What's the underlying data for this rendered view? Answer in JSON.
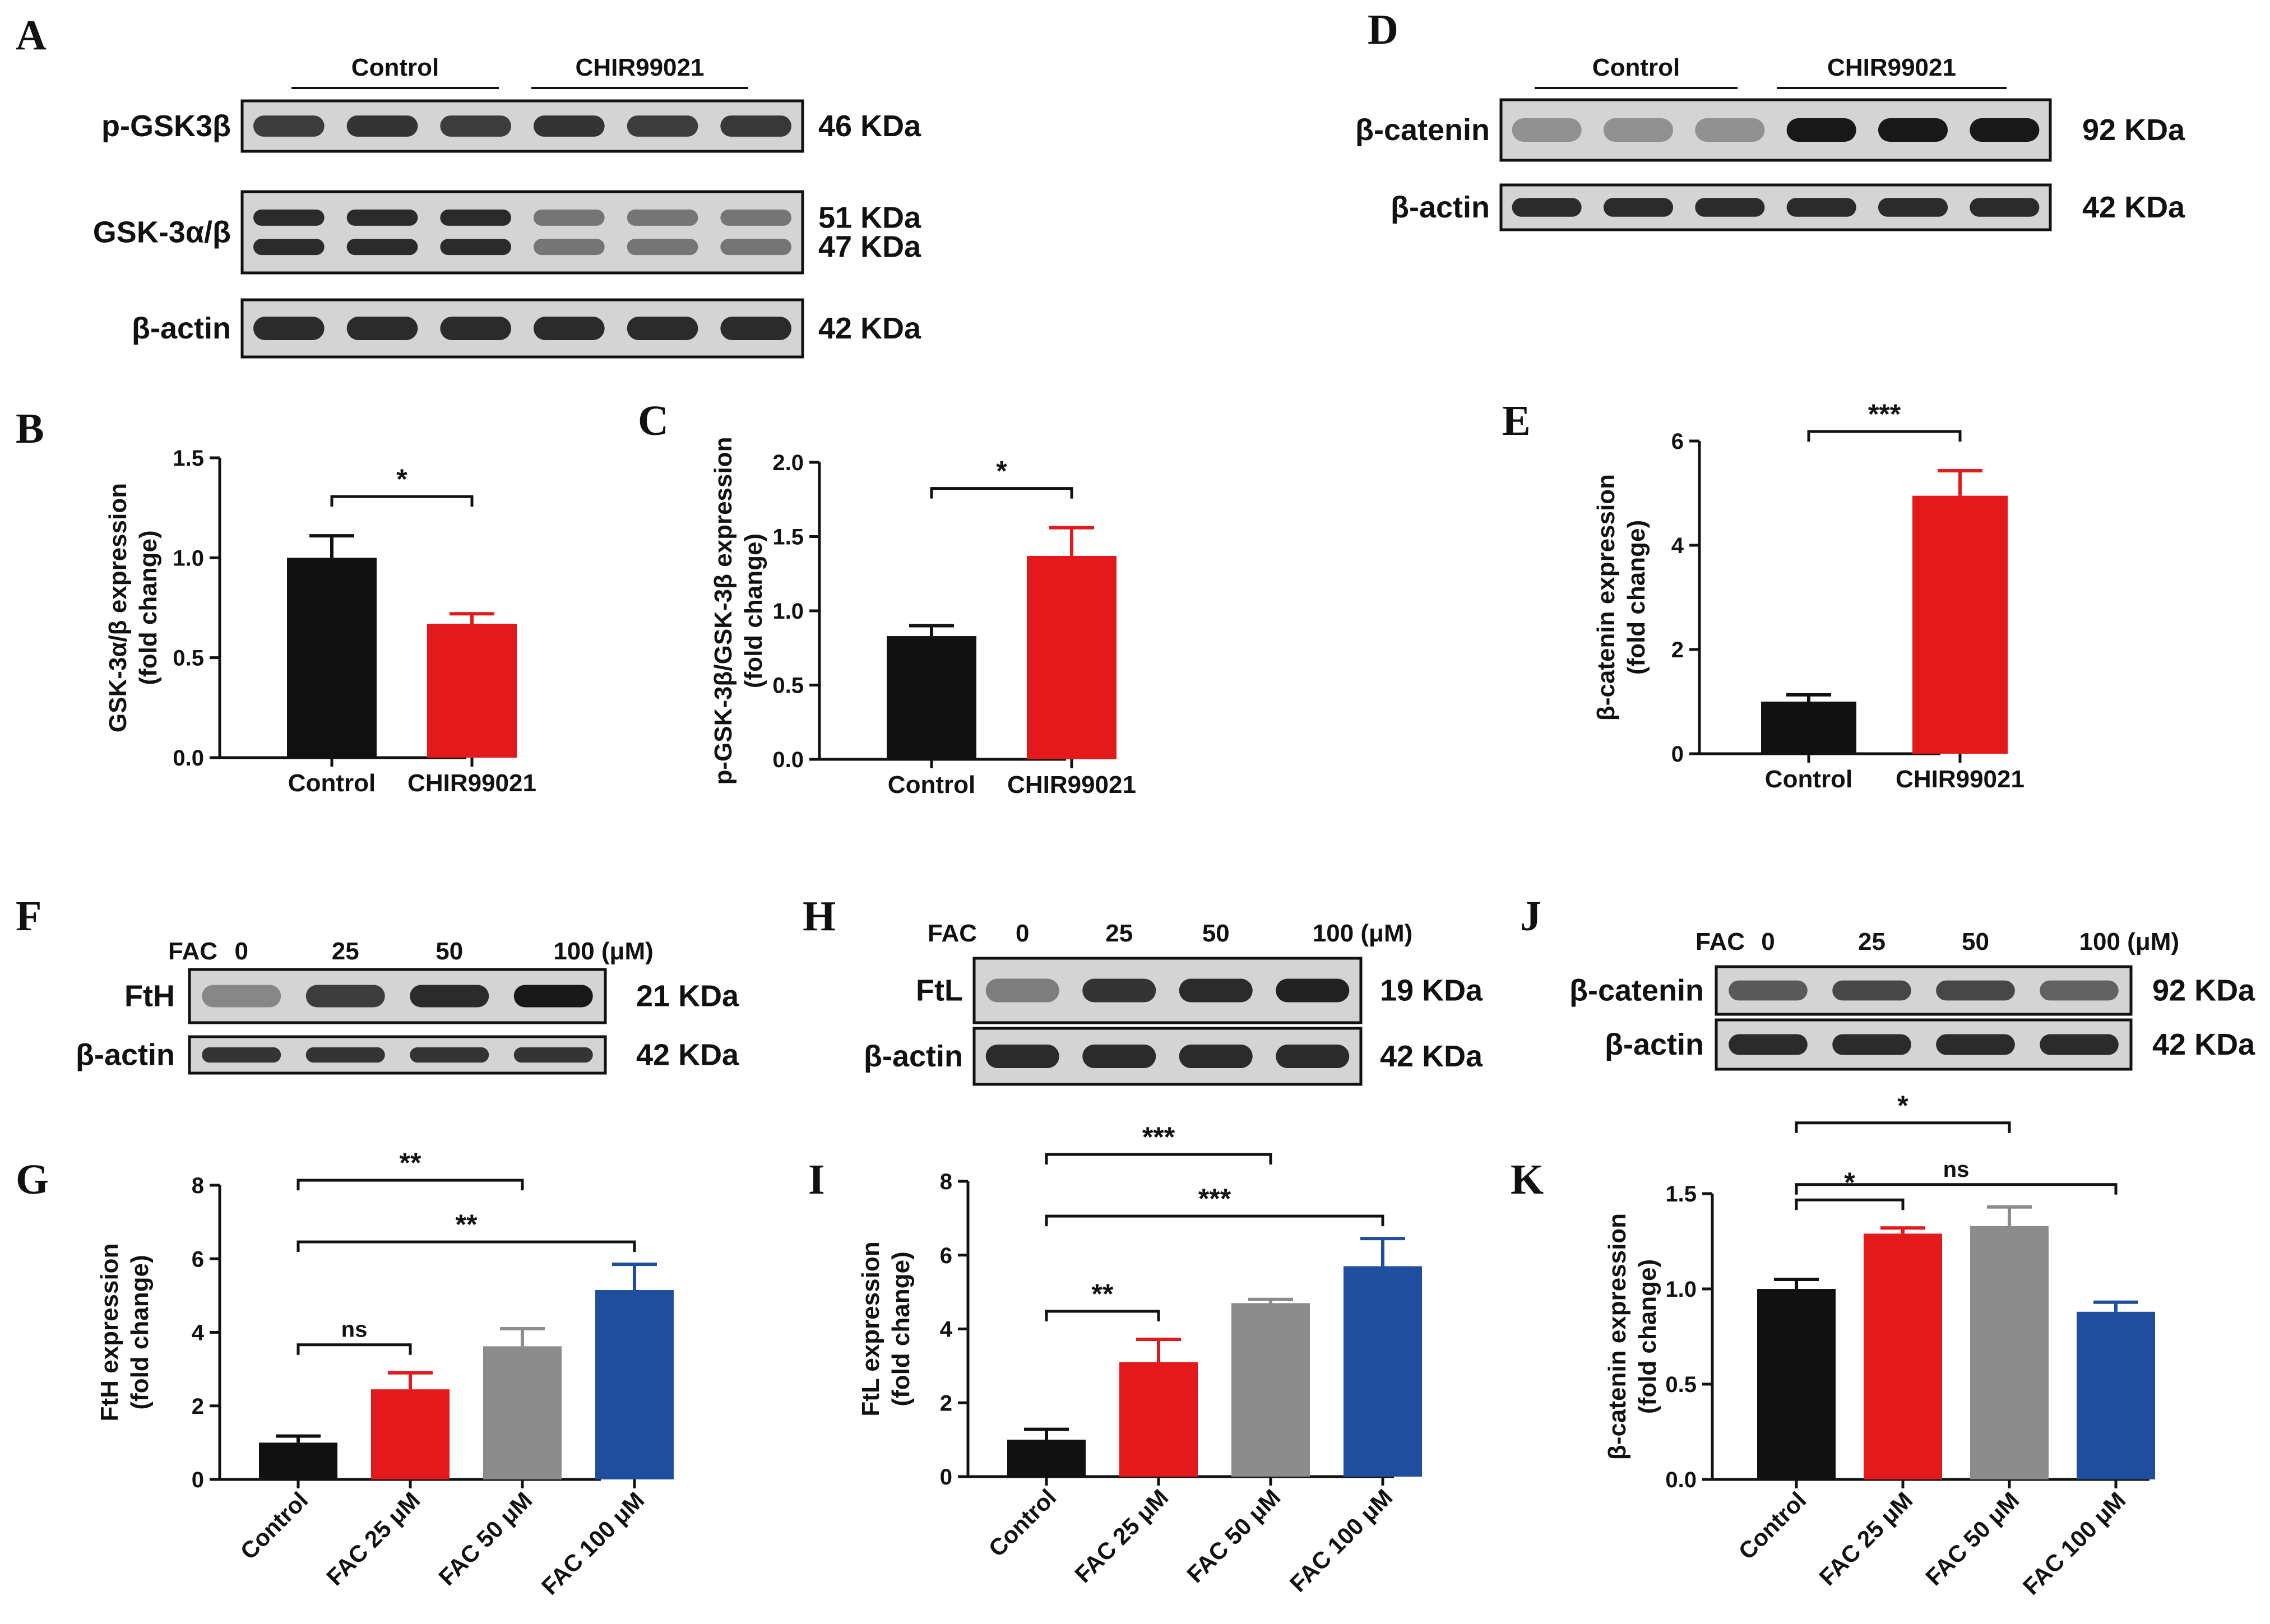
{
  "colors": {
    "black": "#111111",
    "red": "#e3191c",
    "gray": "#8c8c8c",
    "blue": "#1f4e9f"
  },
  "panel_letters": {
    "A": "A",
    "B": "B",
    "C": "C",
    "D": "D",
    "E": "E",
    "F": "F",
    "G": "G",
    "H": "H",
    "I": "I",
    "J": "J",
    "K": "K"
  },
  "blots": {
    "A": {
      "groups": [
        "Control",
        "CHIR99021"
      ],
      "rows": [
        {
          "label": "p-GSK3β",
          "kda": [
            "46 KDa"
          ],
          "intensity": [
            0.75,
            0.8,
            0.75,
            0.8,
            0.75,
            0.78
          ]
        },
        {
          "label": "GSK-3α/β",
          "kda": [
            "51 KDa",
            "47 KDa"
          ],
          "intensity": [
            0.85,
            0.85,
            0.85,
            0.45,
            0.45,
            0.45
          ]
        },
        {
          "label": "β-actin",
          "kda": [
            "42 KDa"
          ],
          "intensity": [
            0.85,
            0.85,
            0.85,
            0.85,
            0.85,
            0.85
          ]
        }
      ]
    },
    "D": {
      "groups": [
        "Control",
        "CHIR99021"
      ],
      "rows": [
        {
          "label": "β-catenin",
          "kda": [
            "92 KDa"
          ],
          "intensity": [
            0.3,
            0.3,
            0.3,
            0.95,
            0.95,
            0.95
          ]
        },
        {
          "label": "β-actin",
          "kda": [
            "42 KDa"
          ],
          "intensity": [
            0.85,
            0.85,
            0.85,
            0.85,
            0.85,
            0.85
          ]
        }
      ]
    },
    "F": {
      "fac_label": "FAC",
      "doses": [
        "0",
        "25",
        "50",
        "100 (μM)"
      ],
      "rows": [
        {
          "label": "FtH",
          "kda": [
            "21 KDa"
          ],
          "intensity": [
            0.35,
            0.75,
            0.85,
            0.95
          ]
        },
        {
          "label": "β-actin",
          "kda": [
            "42 KDa"
          ],
          "intensity": [
            0.8,
            0.8,
            0.8,
            0.8
          ]
        }
      ]
    },
    "H": {
      "fac_label": "FAC",
      "doses": [
        "0",
        "25",
        "50",
        "100 (μM)"
      ],
      "rows": [
        {
          "label": "FtL",
          "kda": [
            "19 KDa"
          ],
          "intensity": [
            0.4,
            0.8,
            0.85,
            0.9
          ]
        },
        {
          "label": "β-actin",
          "kda": [
            "42 KDa"
          ],
          "intensity": [
            0.85,
            0.85,
            0.85,
            0.85
          ]
        }
      ]
    },
    "J": {
      "fac_label": "FAC",
      "doses": [
        "0",
        "25",
        "50",
        "100 (μM)"
      ],
      "rows": [
        {
          "label": "β-catenin",
          "kda": [
            "92 KDa"
          ],
          "intensity": [
            0.6,
            0.7,
            0.7,
            0.55
          ]
        },
        {
          "label": "β-actin",
          "kda": [
            "42 KDa"
          ],
          "intensity": [
            0.85,
            0.85,
            0.85,
            0.85
          ]
        }
      ]
    }
  },
  "chart_data": [
    {
      "panel": "B",
      "type": "bar",
      "categories": [
        "Control",
        "CHIR99021"
      ],
      "values": [
        1.0,
        0.67
      ],
      "errors": [
        0.11,
        0.05
      ],
      "ylabel": "GSK-3α/β expression\n(fold change)",
      "ylim": [
        0,
        1.5
      ],
      "yticks": [
        "0.0",
        "0.5",
        "1.0",
        "1.5"
      ],
      "tick_values": [
        0,
        0.5,
        1,
        1.5
      ],
      "colors": [
        "#111111",
        "#e3191c"
      ],
      "rotate_labels": false,
      "annotations": [
        {
          "from": 0,
          "to": 1,
          "text": "*"
        }
      ]
    },
    {
      "panel": "C",
      "type": "bar",
      "categories": [
        "Control",
        "CHIR99021"
      ],
      "values": [
        0.83,
        1.37
      ],
      "errors": [
        0.07,
        0.19
      ],
      "ylabel": "p-GSK-3β/GSK-3β expression\n(fold change)",
      "ylim": [
        0,
        2.0
      ],
      "yticks": [
        "0.0",
        "0.5",
        "1.0",
        "1.5",
        "2.0"
      ],
      "tick_values": [
        0,
        0.5,
        1,
        1.5,
        2
      ],
      "colors": [
        "#111111",
        "#e3191c"
      ],
      "rotate_labels": false,
      "annotations": [
        {
          "from": 0,
          "to": 1,
          "text": "*"
        }
      ]
    },
    {
      "panel": "E",
      "type": "bar",
      "categories": [
        "Control",
        "CHIR99021"
      ],
      "values": [
        1.0,
        4.95
      ],
      "errors": [
        0.13,
        0.48
      ],
      "ylabel": "β-catenin expression\n(fold change)",
      "ylim": [
        0,
        6
      ],
      "yticks": [
        "0",
        "2",
        "4",
        "6"
      ],
      "tick_values": [
        0,
        2,
        4,
        6
      ],
      "colors": [
        "#111111",
        "#e3191c"
      ],
      "rotate_labels": false,
      "annotations": [
        {
          "from": 0,
          "to": 1,
          "text": "***"
        }
      ]
    },
    {
      "panel": "G",
      "type": "bar",
      "categories": [
        "Control",
        "FAC 25 μM",
        "FAC 50 μM",
        "FAC 100 μM"
      ],
      "values": [
        1.0,
        2.45,
        3.62,
        5.15
      ],
      "errors": [
        0.18,
        0.45,
        0.48,
        0.7
      ],
      "ylabel": "FtH expression\n(fold change)",
      "ylim": [
        0,
        8
      ],
      "yticks": [
        "0",
        "2",
        "4",
        "6",
        "8"
      ],
      "tick_values": [
        0,
        2,
        4,
        6,
        8
      ],
      "colors": [
        "#111111",
        "#e3191c",
        "#8c8c8c",
        "#1f4e9f"
      ],
      "rotate_labels": true,
      "annotations": [
        {
          "from": 0,
          "to": 1,
          "text": "ns"
        },
        {
          "from": 0,
          "to": 2,
          "text": "**"
        },
        {
          "from": 0,
          "to": 3,
          "text": "**"
        }
      ]
    },
    {
      "panel": "I",
      "type": "bar",
      "categories": [
        "Control",
        "FAC 25 μM",
        "FAC 50 μM",
        "FAC 100 μM"
      ],
      "values": [
        1.0,
        3.1,
        4.7,
        5.7
      ],
      "errors": [
        0.28,
        0.62,
        0.1,
        0.75
      ],
      "ylabel": "FtL expression\n(fold change)",
      "ylim": [
        0,
        8
      ],
      "yticks": [
        "0",
        "2",
        "4",
        "6",
        "8"
      ],
      "tick_values": [
        0,
        2,
        4,
        6,
        8
      ],
      "colors": [
        "#111111",
        "#e3191c",
        "#8c8c8c",
        "#1f4e9f"
      ],
      "rotate_labels": true,
      "annotations": [
        {
          "from": 0,
          "to": 1,
          "text": "**"
        },
        {
          "from": 0,
          "to": 2,
          "text": "***"
        },
        {
          "from": 0,
          "to": 3,
          "text": "***"
        }
      ]
    },
    {
      "panel": "K",
      "type": "bar",
      "categories": [
        "Control",
        "FAC 25 μM",
        "FAC 50 μM",
        "FAC 100 μM"
      ],
      "values": [
        1.0,
        1.29,
        1.33,
        0.88
      ],
      "errors": [
        0.05,
        0.03,
        0.1,
        0.05
      ],
      "ylabel": "β-catenin expression\n(fold change)",
      "ylim": [
        0,
        1.5
      ],
      "yticks": [
        "0.0",
        "0.5",
        "1.0",
        "1.5"
      ],
      "tick_values": [
        0,
        0.5,
        1,
        1.5
      ],
      "colors": [
        "#111111",
        "#e3191c",
        "#8c8c8c",
        "#1f4e9f"
      ],
      "rotate_labels": true,
      "annotations": [
        {
          "from": 0,
          "to": 1,
          "text": "*"
        },
        {
          "from": 0,
          "to": 2,
          "text": "*"
        },
        {
          "from": 0,
          "to": 3,
          "text": "ns"
        }
      ]
    }
  ]
}
